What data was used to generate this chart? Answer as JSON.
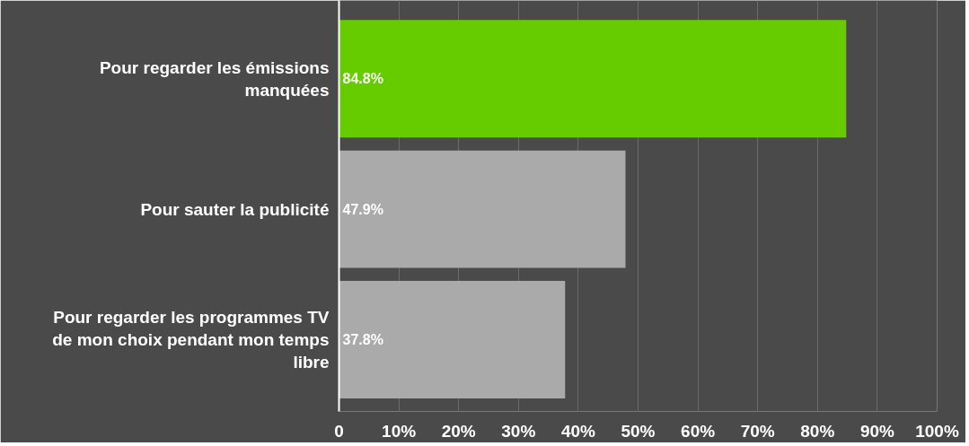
{
  "chart_data": {
    "type": "bar",
    "orientation": "horizontal",
    "categories": [
      "Pour regarder les émissions manquées",
      "Pour sauter la publicité",
      "Pour regarder les programmes TV de mon choix pendant mon temps libre"
    ],
    "values": [
      84.8,
      47.9,
      37.8
    ],
    "colors": [
      "#66cc00",
      "#aaaaaa",
      "#aaaaaa"
    ],
    "value_labels": [
      "84.8%",
      "47.9%",
      "37.8%"
    ],
    "xlim": [
      0,
      100
    ],
    "xticks": [
      0,
      {
        "value": 10,
        "label": "10%"
      },
      {
        "value": 20,
        "label": "20%"
      },
      {
        "value": 30,
        "label": "30%"
      },
      {
        "value": 40,
        "label": "40%"
      },
      {
        "value": 50,
        "label": "50%"
      },
      {
        "value": 60,
        "label": "60%"
      },
      {
        "value": 70,
        "label": "70%"
      },
      {
        "value": 80,
        "label": "80%"
      },
      {
        "value": 90,
        "label": "90%"
      },
      {
        "value": 100,
        "label": "100%"
      }
    ],
    "grid": "x"
  }
}
